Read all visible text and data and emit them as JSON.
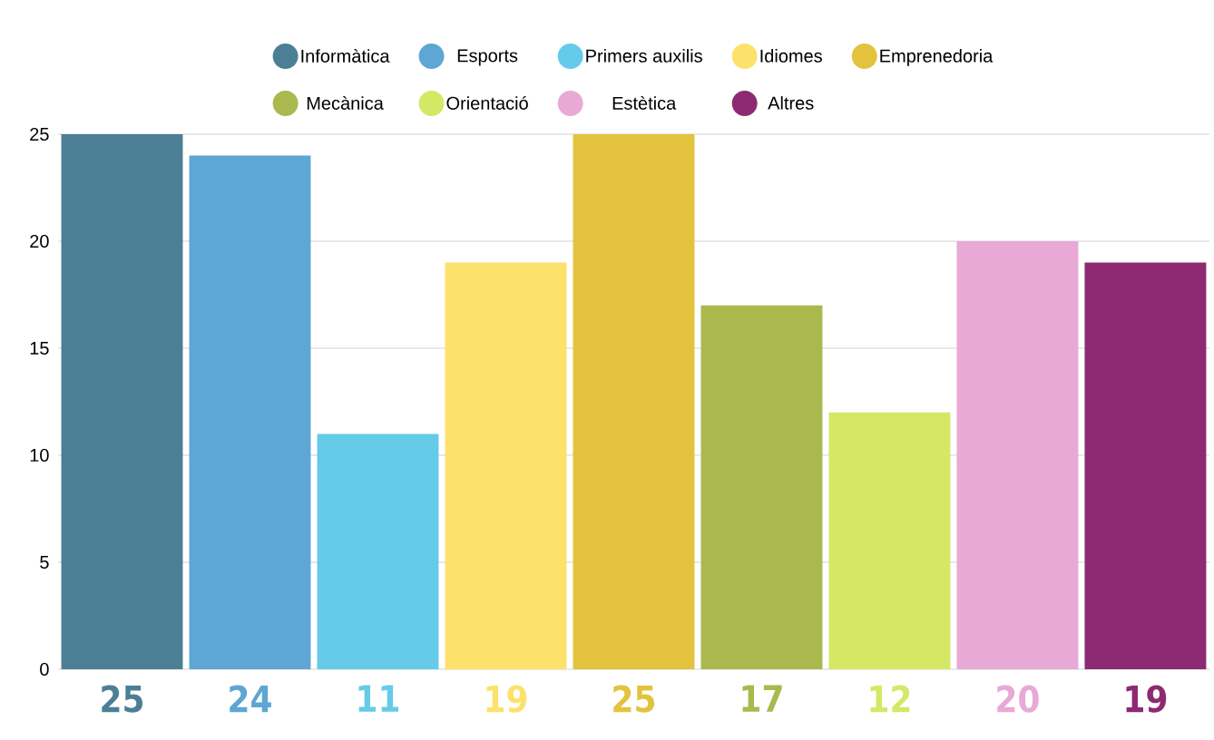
{
  "chart_data": {
    "type": "bar",
    "categories": [
      null,
      null,
      null,
      null,
      null,
      null,
      null,
      null,
      null
    ],
    "series": [
      {
        "name": "Informàtica",
        "color": "#4c7f96",
        "values": [
          25,
          null,
          null,
          null,
          null,
          null,
          null,
          null,
          null
        ]
      },
      {
        "name": "Esports",
        "color": "#5ea6d3",
        "values": [
          null,
          24,
          null,
          null,
          null,
          null,
          null,
          null,
          null
        ]
      },
      {
        "name": "Primers auxilis",
        "color": "#66cbe8",
        "values": [
          null,
          null,
          11,
          null,
          null,
          null,
          null,
          null,
          null
        ]
      },
      {
        "name": "Idiomes",
        "color": "#fce26b",
        "values": [
          null,
          null,
          null,
          19,
          null,
          null,
          null,
          null,
          null
        ]
      },
      {
        "name": "Emprenedoria",
        "color": "#e3c33e",
        "values": [
          null,
          null,
          null,
          null,
          25,
          null,
          null,
          null,
          null
        ]
      },
      {
        "name": "Mecànica",
        "color": "#a9b94d",
        "values": [
          null,
          null,
          null,
          null,
          null,
          17,
          null,
          null,
          null
        ]
      },
      {
        "name": "Orientació",
        "color": "#d4e866",
        "values": [
          null,
          null,
          null,
          null,
          null,
          null,
          12,
          null,
          null
        ]
      },
      {
        "name": "Estètica",
        "color": "#e8a9d6",
        "values": [
          null,
          null,
          null,
          null,
          null,
          null,
          null,
          20,
          null
        ]
      },
      {
        "name": "Altres",
        "color": "#8d2a72",
        "values": [
          null,
          null,
          null,
          null,
          null,
          null,
          null,
          null,
          19
        ]
      }
    ],
    "ylim": [
      0,
      25
    ],
    "yticks": [
      0,
      5,
      10,
      15,
      20,
      25
    ],
    "grid": "y",
    "legend": "top",
    "data_labels": true,
    "tick_labels": "y"
  }
}
